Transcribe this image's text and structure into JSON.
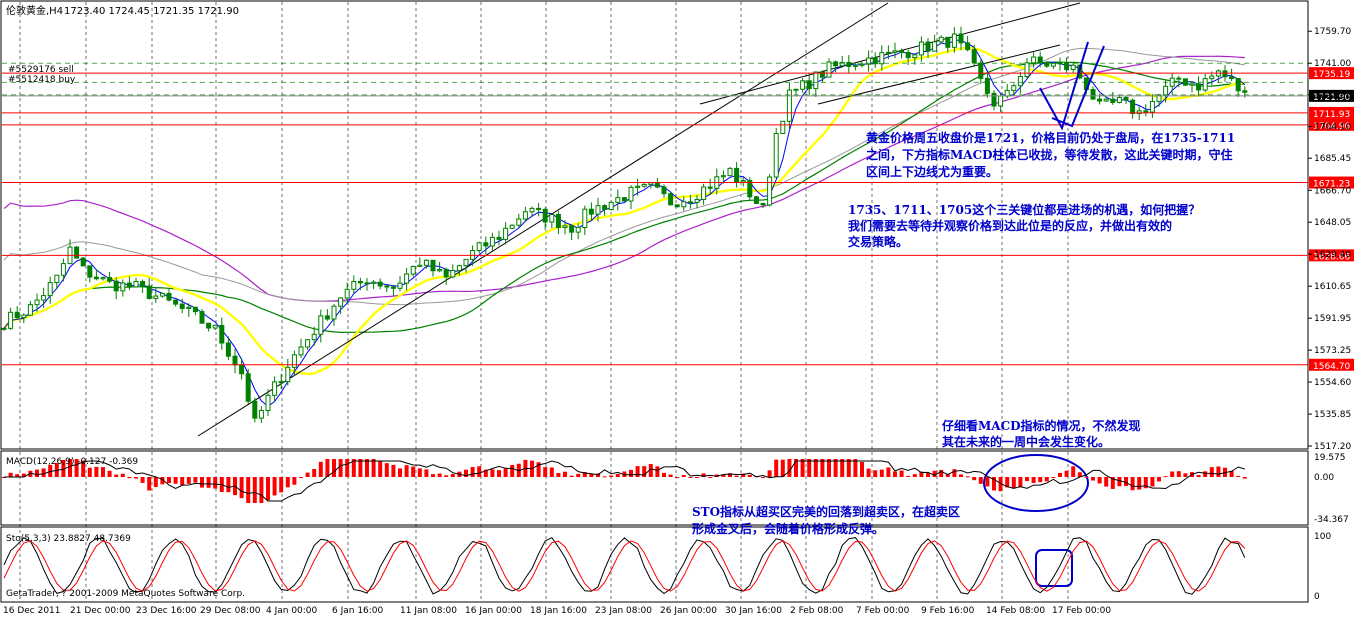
{
  "header": {
    "symbol_label": "伦敦黄金,H4",
    "ohlc": "1723.40 1724.45 1721.35 1721.90",
    "order_sell": "#5529176 sell",
    "order_buy": "#5512418 buy"
  },
  "indicators": {
    "macd_label": "MACD(12,26,9) -0.127 -0.369",
    "sto_label": "Sto(5,3,3) 23.8827 48.7369",
    "copyright": "GetaTrader, ? 2001-2009 MetaQuotes Software Corp."
  },
  "annotations": {
    "note1_line1": "黄金价格周五收盘价是1721，价格目前仍处于盘局，在1735-1711",
    "note1_line2": "之间，下方指标MACD柱体已收拢，等待发散，这此关键时期，守住",
    "note1_line3": "区间上下边线尤为重要。",
    "note2_line1": "1735、1711、1705这个三关键位都是进场的机遇，如何把握？",
    "note2_line2": "我们需要去等待并观察价格到达此位是的反应，并做出有效的",
    "note2_line3": "交易策略。",
    "note3_line1": "仔细看MACD指标的情况，不然发现",
    "note3_line2": "其在未来的一周中会发生变化。",
    "note4_line1": "STO指标从超买区完美的回落到超卖区，在超卖区",
    "note4_line2": "形成金叉后，会随着价格形成反弹。"
  },
  "colors": {
    "candle": "#008000",
    "level_line": "#ff0000",
    "trend_line": "#000000",
    "ma_yellow": "#ffff00",
    "ma_blue": "#0000ff",
    "ma_green": "#008000",
    "ma_purple": "#aa22cc",
    "ma_gray": "#999999",
    "macd_hist": "#ff0000",
    "sto_main": "#000000",
    "sto_signal": "#ff0000",
    "annotation": "#0000cc"
  },
  "chart_data": {
    "type": "candlestick",
    "title": "伦敦黄金,H4",
    "price_ylim": [
      1512,
      1772
    ],
    "y_ticks": [
      "1759.70",
      "1741.00",
      "1722.55",
      "1704.10",
      "1685.45",
      "1666.70",
      "1648.05",
      "1629.40",
      "1610.65",
      "1591.95",
      "1573.25",
      "1554.60",
      "1535.85",
      "1517.20"
    ],
    "x_ticks": [
      "16 Dec 2011",
      "21 Dec 00:00",
      "23 Dec 16:00",
      "29 Dec 08:00",
      "4 Jan 00:00",
      "6 Jan 16:00",
      "11 Jan 08:00",
      "16 Jan 00:00",
      "18 Jan 16:00",
      "23 Jan 08:00",
      "26 Jan 00:00",
      "30 Jan 16:00",
      "2 Feb 08:00",
      "7 Feb 00:00",
      "9 Feb 16:00",
      "14 Feb 08:00",
      "17 Feb 00:00"
    ],
    "price_levels": [
      {
        "value": 1735.19,
        "label": "1735.19"
      },
      {
        "value": 1711.93,
        "label": "1711.93"
      },
      {
        "value": 1704.96,
        "label": "1704.96"
      },
      {
        "value": 1671.23,
        "label": "1671.23"
      },
      {
        "value": 1628.66,
        "label": "1628.66"
      },
      {
        "value": 1564.7,
        "label": "1564.70"
      }
    ],
    "current_price": {
      "value": 1721.9,
      "label": "1721.90"
    },
    "close_path": [
      [
        0,
        1590
      ],
      [
        4,
        1598
      ],
      [
        8,
        1615
      ],
      [
        10,
        1632
      ],
      [
        12,
        1620
      ],
      [
        16,
        1612
      ],
      [
        20,
        1610
      ],
      [
        24,
        1603
      ],
      [
        28,
        1595
      ],
      [
        32,
        1585
      ],
      [
        36,
        1560
      ],
      [
        38,
        1530
      ],
      [
        40,
        1545
      ],
      [
        43,
        1565
      ],
      [
        47,
        1585
      ],
      [
        51,
        1605
      ],
      [
        55,
        1615
      ],
      [
        59,
        1610
      ],
      [
        63,
        1625
      ],
      [
        67,
        1615
      ],
      [
        71,
        1630
      ],
      [
        75,
        1640
      ],
      [
        79,
        1655
      ],
      [
        83,
        1650
      ],
      [
        86,
        1645
      ],
      [
        89,
        1655
      ],
      [
        92,
        1660
      ],
      [
        95,
        1665
      ],
      [
        98,
        1668
      ],
      [
        101,
        1660
      ],
      [
        104,
        1663
      ],
      [
        107,
        1670
      ],
      [
        110,
        1678
      ],
      [
        113,
        1665
      ],
      [
        115,
        1655
      ],
      [
        117,
        1700
      ],
      [
        119,
        1722
      ],
      [
        122,
        1730
      ],
      [
        125,
        1738
      ],
      [
        129,
        1742
      ],
      [
        133,
        1745
      ],
      [
        137,
        1748
      ],
      [
        141,
        1752
      ],
      [
        144,
        1755
      ],
      [
        146,
        1745
      ],
      [
        148,
        1730
      ],
      [
        150,
        1718
      ],
      [
        152,
        1722
      ],
      [
        155,
        1742
      ],
      [
        159,
        1740
      ],
      [
        162,
        1738
      ],
      [
        164,
        1728
      ],
      [
        166,
        1715
      ],
      [
        169,
        1718
      ],
      [
        172,
        1712
      ],
      [
        175,
        1722
      ],
      [
        178,
        1732
      ],
      [
        181,
        1728
      ],
      [
        184,
        1736
      ],
      [
        186,
        1730
      ],
      [
        188,
        1722
      ]
    ],
    "trendlines": [
      {
        "name": "",
        "from": {
          "x": "29 Dec 08:00",
          "y": 1523
        },
        "to": {
          "x": "17 Feb 00:00",
          "y": 1768
        }
      },
      {
        "name": "",
        "from": {
          "x": "30 Jan 16:00",
          "y": 1713
        },
        "to": {
          "x": "7 Feb 00:00",
          "y": 1768
        }
      }
    ],
    "macd": {
      "label": "MACD(12,26,9)",
      "value": -0.127,
      "signal": -0.369,
      "ylim": [
        -34.367,
        19.575
      ],
      "ticks": [
        "19.575",
        "0.00",
        "-34.367"
      ]
    },
    "stochastic": {
      "label": "Sto(5,3,3)",
      "main": 23.8827,
      "signal": 48.7369,
      "ylim": [
        0,
        100
      ],
      "ticks": [
        "100",
        "0"
      ]
    }
  }
}
